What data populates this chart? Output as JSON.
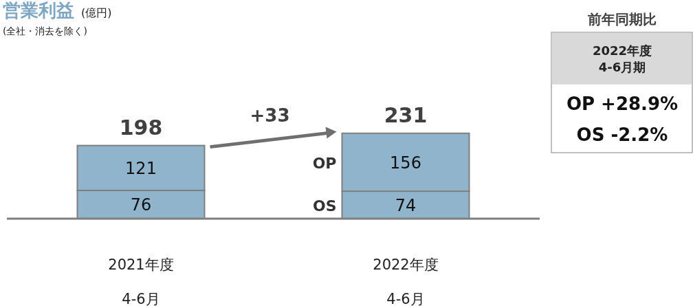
{
  "chart_data": [
    {
      "type": "bar",
      "title": "営業利益 (億円)",
      "subtitle": "(全社・消去を除く)",
      "categories": [
        "2021年度\n4-6月",
        "2022年度\n4-6月"
      ],
      "stacked": true,
      "data_labels": true,
      "series": [
        {
          "name": "OS",
          "color": "#8fb4cc",
          "values": [
            76,
            74
          ]
        },
        {
          "name": "OP",
          "color": "#8fb4cc",
          "values": [
            121,
            156
          ]
        }
      ],
      "totals": [
        "198",
        "231"
      ],
      "annotations": [
        "+33"
      ]
    },
    {
      "type": "other",
      "title": "前年同期比",
      "annotations": [
        "2022年度\n4-6月期",
        "OP +28.9%",
        "OS -2.2%"
      ]
    }
  ]
}
